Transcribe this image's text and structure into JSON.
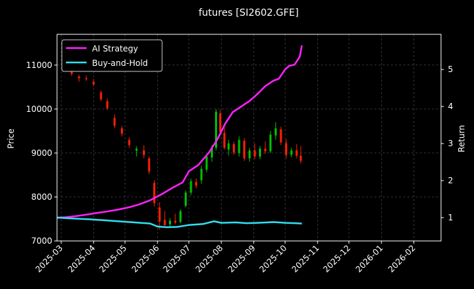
{
  "chart_data": {
    "type": "line",
    "title": "futures [SI2602.GFE]",
    "ylabel": "Price",
    "y2label": "Return",
    "ylim": [
      7000,
      11700
    ],
    "y2lim": [
      0.37,
      5.95
    ],
    "x_range": [
      "2025-02-25",
      "2026-02-27"
    ],
    "grid": true,
    "legend_position": "upper-left",
    "x_ticks": [
      "2025-03",
      "2025-04",
      "2025-05",
      "2025-06",
      "2025-07",
      "2025-08",
      "2025-09",
      "2025-10",
      "2025-11",
      "2025-12",
      "2026-01",
      "2026-02"
    ],
    "y_ticks": [
      7000,
      8000,
      9000,
      10000,
      11000
    ],
    "y2_ticks": [
      1,
      2,
      3,
      4,
      5
    ],
    "colors": {
      "up": "#00c000",
      "down": "#ff2000",
      "ai": "#ff22ff",
      "bh": "#33ddee",
      "grid": "#666666",
      "axis": "#ffffff"
    },
    "series": [
      {
        "name": "AI Strategy",
        "axis": "right",
        "points": [
          [
            "2025-02-25",
            1.0
          ],
          [
            "2025-03-05",
            1.01
          ],
          [
            "2025-03-15",
            1.04
          ],
          [
            "2025-03-25",
            1.08
          ],
          [
            "2025-04-05",
            1.13
          ],
          [
            "2025-04-15",
            1.17
          ],
          [
            "2025-04-25",
            1.22
          ],
          [
            "2025-05-05",
            1.28
          ],
          [
            "2025-05-15",
            1.36
          ],
          [
            "2025-05-25",
            1.47
          ],
          [
            "2025-06-05",
            1.63
          ],
          [
            "2025-06-15",
            1.8
          ],
          [
            "2025-06-25",
            1.95
          ],
          [
            "2025-07-01",
            2.25
          ],
          [
            "2025-07-10",
            2.42
          ],
          [
            "2025-07-20",
            2.75
          ],
          [
            "2025-07-28",
            3.1
          ],
          [
            "2025-08-05",
            3.55
          ],
          [
            "2025-08-12",
            3.85
          ],
          [
            "2025-08-20",
            4.0
          ],
          [
            "2025-08-28",
            4.15
          ],
          [
            "2025-09-05",
            4.35
          ],
          [
            "2025-09-12",
            4.55
          ],
          [
            "2025-09-20",
            4.7
          ],
          [
            "2025-09-25",
            4.75
          ],
          [
            "2025-10-01",
            5.0
          ],
          [
            "2025-10-05",
            5.1
          ],
          [
            "2025-10-10",
            5.13
          ],
          [
            "2025-10-15",
            5.35
          ],
          [
            "2025-10-17",
            5.65
          ]
        ]
      },
      {
        "name": "Buy-and-Hold",
        "axis": "right",
        "points": [
          [
            "2025-02-25",
            1.0
          ],
          [
            "2025-03-10",
            0.98
          ],
          [
            "2025-03-25",
            0.96
          ],
          [
            "2025-04-10",
            0.93
          ],
          [
            "2025-04-25",
            0.9
          ],
          [
            "2025-05-10",
            0.87
          ],
          [
            "2025-05-25",
            0.84
          ],
          [
            "2025-06-01",
            0.76
          ],
          [
            "2025-06-10",
            0.74
          ],
          [
            "2025-06-20",
            0.75
          ],
          [
            "2025-07-01",
            0.8
          ],
          [
            "2025-07-15",
            0.83
          ],
          [
            "2025-07-25",
            0.9
          ],
          [
            "2025-08-01",
            0.86
          ],
          [
            "2025-08-15",
            0.87
          ],
          [
            "2025-08-25",
            0.85
          ],
          [
            "2025-09-05",
            0.86
          ],
          [
            "2025-09-20",
            0.88
          ],
          [
            "2025-10-01",
            0.86
          ],
          [
            "2025-10-10",
            0.85
          ],
          [
            "2025-10-17",
            0.84
          ]
        ]
      }
    ],
    "candles": [
      [
        "2025-03-04",
        11050,
        11200,
        10950,
        11100
      ],
      [
        "2025-03-11",
        10950,
        10980,
        10750,
        10800
      ],
      [
        "2025-03-18",
        10740,
        10780,
        10620,
        10700
      ],
      [
        "2025-03-25",
        10700,
        10760,
        10640,
        10680
      ],
      [
        "2025-04-01",
        10620,
        10680,
        10520,
        10560
      ],
      [
        "2025-04-08",
        10380,
        10420,
        10180,
        10220
      ],
      [
        "2025-04-14",
        10180,
        10240,
        9980,
        10020
      ],
      [
        "2025-04-21",
        9800,
        9880,
        9560,
        9620
      ],
      [
        "2025-04-28",
        9560,
        9620,
        9380,
        9440
      ],
      [
        "2025-05-05",
        9300,
        9360,
        9120,
        9180
      ],
      [
        "2025-05-12",
        9050,
        9160,
        8920,
        9100
      ],
      [
        "2025-05-19",
        9060,
        9180,
        8880,
        8960
      ],
      [
        "2025-05-24",
        8880,
        8920,
        8520,
        8580
      ],
      [
        "2025-05-29",
        8320,
        8380,
        7780,
        7860
      ],
      [
        "2025-06-03",
        7760,
        7880,
        7260,
        7440
      ],
      [
        "2025-06-08",
        7480,
        7680,
        7340,
        7360
      ],
      [
        "2025-06-13",
        7380,
        7520,
        7300,
        7460
      ],
      [
        "2025-06-18",
        7460,
        7620,
        7380,
        7420
      ],
      [
        "2025-06-23",
        7430,
        7720,
        7400,
        7680
      ],
      [
        "2025-06-28",
        7800,
        8150,
        7760,
        8100
      ],
      [
        "2025-07-03",
        8100,
        8420,
        8040,
        8360
      ],
      [
        "2025-07-08",
        8340,
        8420,
        8200,
        8260
      ],
      [
        "2025-07-13",
        8380,
        8720,
        8300,
        8640
      ],
      [
        "2025-07-18",
        8620,
        8980,
        8560,
        8920
      ],
      [
        "2025-07-23",
        8900,
        9180,
        8800,
        9120
      ],
      [
        "2025-07-27",
        9120,
        10000,
        9060,
        9940
      ],
      [
        "2025-07-31",
        9900,
        9980,
        9400,
        9480
      ],
      [
        "2025-08-04",
        9460,
        9580,
        9080,
        9120
      ],
      [
        "2025-08-08",
        9080,
        9300,
        8940,
        9220
      ],
      [
        "2025-08-13",
        9200,
        9260,
        8960,
        9010
      ],
      [
        "2025-08-18",
        9000,
        9380,
        8920,
        9300
      ],
      [
        "2025-08-23",
        9280,
        9340,
        8820,
        8880
      ],
      [
        "2025-08-28",
        8880,
        9120,
        8800,
        9060
      ],
      [
        "2025-09-02",
        9060,
        9220,
        8860,
        8920
      ],
      [
        "2025-09-07",
        8920,
        9160,
        8860,
        9100
      ],
      [
        "2025-09-12",
        9100,
        9260,
        8980,
        9040
      ],
      [
        "2025-09-17",
        9040,
        9500,
        9000,
        9420
      ],
      [
        "2025-09-22",
        9400,
        9700,
        9300,
        9560
      ],
      [
        "2025-09-27",
        9540,
        9600,
        9180,
        9240
      ],
      [
        "2025-10-02",
        9220,
        9320,
        8880,
        8960
      ],
      [
        "2025-10-07",
        8960,
        9120,
        8900,
        9060
      ],
      [
        "2025-10-12",
        9060,
        9200,
        8880,
        8940
      ],
      [
        "2025-10-16",
        8940,
        9160,
        8760,
        8820
      ]
    ]
  }
}
